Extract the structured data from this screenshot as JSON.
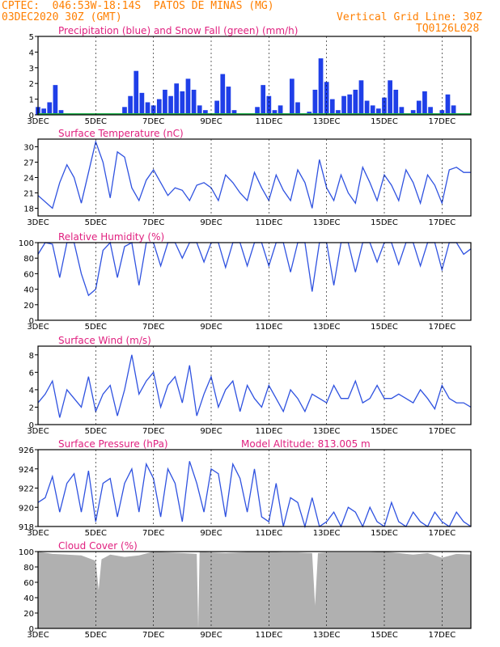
{
  "header": {
    "left_line1": "CPTEC:  046:53W-18:14S  PATOS DE MINAS (MG)",
    "left_line2": "03DEC2020 30Z (GMT)",
    "right_line1": "Vertical Grid Line: 30Z",
    "right_line2": "TQ0126L028"
  },
  "colors": {
    "header": "#ff7f00",
    "title": "#e0207f",
    "precip": "#1f3fe8",
    "snow": "#22b14c",
    "line": "#2f52e0",
    "cloud": "#b0b0b0",
    "grid": "#000000"
  },
  "x_axis": {
    "start_day": 3,
    "end_day": 18,
    "tick_labels": [
      "3DEC",
      "5DEC",
      "7DEC",
      "9DEC",
      "11DEC",
      "13DEC",
      "15DEC",
      "17DEC"
    ]
  },
  "chart_data": [
    {
      "type": "bar",
      "title": "Precipitation (blue) and Snow Fall (green) (mm/h)",
      "ylim": [
        0,
        5
      ],
      "yticks": [
        0,
        1,
        2,
        3,
        4,
        5
      ],
      "series": [
        {
          "name": "Precipitation",
          "x": [
            3.0,
            3.2,
            3.4,
            3.6,
            3.8,
            4.0,
            4.2,
            4.4,
            4.6,
            4.8,
            5.0,
            5.2,
            5.4,
            5.6,
            5.8,
            6.0,
            6.2,
            6.4,
            6.6,
            6.8,
            7.0,
            7.2,
            7.4,
            7.6,
            7.8,
            8.0,
            8.2,
            8.4,
            8.6,
            8.8,
            9.0,
            9.2,
            9.4,
            9.6,
            9.8,
            10.0,
            10.2,
            10.4,
            10.6,
            10.8,
            11.0,
            11.2,
            11.4,
            11.6,
            11.8,
            12.0,
            12.2,
            12.4,
            12.6,
            12.8,
            13.0,
            13.2,
            13.4,
            13.6,
            13.8,
            14.0,
            14.2,
            14.4,
            14.6,
            14.8,
            15.0,
            15.2,
            15.4,
            15.6,
            15.8,
            16.0,
            16.2,
            16.4,
            16.6,
            16.8,
            17.0,
            17.2,
            17.4,
            17.6,
            17.8
          ],
          "values": [
            0.5,
            0.4,
            0.8,
            1.9,
            0.3,
            0.1,
            0.0,
            0.0,
            0.0,
            0.0,
            0.0,
            0.0,
            0.0,
            0.0,
            0.0,
            0.5,
            1.2,
            2.8,
            1.4,
            0.8,
            0.6,
            1.0,
            1.6,
            1.2,
            2.0,
            1.5,
            2.3,
            1.6,
            0.6,
            0.3,
            0.1,
            0.9,
            2.6,
            1.8,
            0.3,
            0.0,
            0.1,
            0.0,
            0.5,
            1.9,
            1.2,
            0.3,
            0.6,
            0.1,
            2.3,
            0.8,
            0.1,
            0.2,
            1.6,
            3.6,
            2.1,
            1.0,
            0.3,
            1.2,
            1.3,
            1.6,
            2.2,
            0.9,
            0.6,
            0.4,
            1.1,
            2.2,
            1.6,
            0.5,
            0.1,
            0.3,
            0.9,
            1.5,
            0.5,
            0.0,
            0.3,
            1.3,
            0.6,
            0.1,
            0.0
          ]
        },
        {
          "name": "Snow Fall",
          "x": [
            3.0,
            18.0
          ],
          "values": [
            0.0,
            0.0
          ]
        }
      ]
    },
    {
      "type": "line",
      "title": "Surface Temperature (nC)",
      "ylim": [
        16.5,
        31.5
      ],
      "yticks": [
        18,
        21,
        24,
        27,
        30
      ],
      "series": [
        {
          "name": "Temperature",
          "x": [
            3.0,
            3.5,
            3.75,
            4.0,
            4.25,
            4.5,
            4.75,
            5.0,
            5.25,
            5.5,
            5.75,
            6.0,
            6.25,
            6.5,
            6.75,
            7.0,
            7.25,
            7.5,
            7.75,
            8.0,
            8.25,
            8.5,
            8.75,
            9.0,
            9.25,
            9.5,
            9.75,
            10.0,
            10.25,
            10.5,
            10.75,
            11.0,
            11.25,
            11.5,
            11.75,
            12.0,
            12.25,
            12.5,
            12.75,
            13.0,
            13.25,
            13.5,
            13.75,
            14.0,
            14.25,
            14.5,
            14.75,
            15.0,
            15.25,
            15.5,
            15.75,
            16.0,
            16.25,
            16.5,
            16.75,
            17.0,
            17.25,
            17.5,
            17.75,
            18.0
          ],
          "values": [
            20.5,
            18.0,
            23.0,
            26.5,
            24.0,
            19.0,
            25.0,
            31.0,
            27.0,
            20.0,
            29.0,
            28.0,
            22.0,
            19.5,
            23.5,
            25.5,
            23.0,
            20.5,
            22.0,
            21.5,
            19.5,
            22.5,
            23.0,
            22.0,
            19.5,
            24.5,
            23.0,
            21.0,
            19.5,
            25.0,
            22.0,
            19.5,
            24.5,
            21.5,
            19.5,
            25.5,
            23.0,
            18.0,
            27.5,
            22.0,
            19.5,
            24.5,
            21.0,
            19.0,
            26.0,
            23.0,
            19.5,
            24.5,
            22.5,
            19.5,
            25.5,
            23.0,
            19.0,
            24.5,
            22.5,
            19.0,
            25.5,
            26.0,
            25.0,
            25.0
          ]
        }
      ]
    },
    {
      "type": "line",
      "title": "Relative Humidity (%)",
      "ylim": [
        0,
        100
      ],
      "yticks": [
        0,
        20,
        40,
        60,
        80,
        100
      ],
      "series": [
        {
          "name": "Relative Humidity",
          "x": [
            3.0,
            3.25,
            3.5,
            3.75,
            4.0,
            4.25,
            4.5,
            4.75,
            5.0,
            5.25,
            5.5,
            5.75,
            6.0,
            6.25,
            6.5,
            6.75,
            7.0,
            7.25,
            7.5,
            7.75,
            8.0,
            8.25,
            8.5,
            8.75,
            9.0,
            9.25,
            9.5,
            9.75,
            10.0,
            10.25,
            10.5,
            10.75,
            11.0,
            11.25,
            11.5,
            11.75,
            12.0,
            12.25,
            12.5,
            12.75,
            13.0,
            13.25,
            13.5,
            13.75,
            14.0,
            14.25,
            14.5,
            14.75,
            15.0,
            15.25,
            15.5,
            15.75,
            16.0,
            16.25,
            16.5,
            16.75,
            17.0,
            17.25,
            17.5,
            17.75,
            18.0
          ],
          "values": [
            85,
            100,
            98,
            55,
            100,
            100,
            60,
            32,
            40,
            90,
            100,
            55,
            95,
            100,
            45,
            100,
            100,
            70,
            100,
            100,
            80,
            100,
            100,
            75,
            100,
            100,
            68,
            100,
            100,
            70,
            100,
            100,
            70,
            100,
            100,
            62,
            100,
            100,
            37,
            100,
            100,
            45,
            100,
            100,
            62,
            100,
            100,
            75,
            100,
            100,
            72,
            100,
            100,
            70,
            100,
            100,
            65,
            100,
            100,
            85,
            92
          ]
        }
      ]
    },
    {
      "type": "line",
      "title": "Surface Wind (m/s)",
      "ylim": [
        0,
        9
      ],
      "yticks": [
        0,
        2,
        4,
        6,
        8
      ],
      "series": [
        {
          "name": "Wind speed",
          "x": [
            3.0,
            3.25,
            3.5,
            3.75,
            4.0,
            4.25,
            4.5,
            4.75,
            5.0,
            5.25,
            5.5,
            5.75,
            6.0,
            6.25,
            6.5,
            6.75,
            7.0,
            7.25,
            7.5,
            7.75,
            8.0,
            8.25,
            8.5,
            8.75,
            9.0,
            9.25,
            9.5,
            9.75,
            10.0,
            10.25,
            10.5,
            10.75,
            11.0,
            11.25,
            11.5,
            11.75,
            12.0,
            12.25,
            12.5,
            12.75,
            13.0,
            13.25,
            13.5,
            13.75,
            14.0,
            14.25,
            14.5,
            14.75,
            15.0,
            15.25,
            15.5,
            15.75,
            16.0,
            16.25,
            16.5,
            16.75,
            17.0,
            17.25,
            17.5,
            17.75,
            18.0
          ],
          "values": [
            2.5,
            3.5,
            5.0,
            0.8,
            4.0,
            3.0,
            2.0,
            5.5,
            1.5,
            3.5,
            4.5,
            1.0,
            4.0,
            8.0,
            3.5,
            5.0,
            6.0,
            2.0,
            4.5,
            5.5,
            2.5,
            6.8,
            1.0,
            3.5,
            5.5,
            2.0,
            4.0,
            5.0,
            1.5,
            4.5,
            3.0,
            2.0,
            4.5,
            3.0,
            1.5,
            4.0,
            3.0,
            1.5,
            3.5,
            3.0,
            2.5,
            4.5,
            3.0,
            3.0,
            5.0,
            2.5,
            3.0,
            4.5,
            3.0,
            3.0,
            3.5,
            3.0,
            2.5,
            4.0,
            3.0,
            1.8,
            4.5,
            3.0,
            2.5,
            2.5,
            2.0
          ]
        }
      ]
    },
    {
      "type": "line",
      "title": "Surface Pressure (hPa)",
      "subtitle": "Model Altitude: 813.005 m",
      "ylim": [
        918,
        926
      ],
      "yticks": [
        918,
        920,
        922,
        924,
        926
      ],
      "series": [
        {
          "name": "Pressure",
          "x": [
            3.0,
            3.25,
            3.5,
            3.75,
            4.0,
            4.25,
            4.5,
            4.75,
            5.0,
            5.25,
            5.5,
            5.75,
            6.0,
            6.25,
            6.5,
            6.75,
            7.0,
            7.25,
            7.5,
            7.75,
            8.0,
            8.25,
            8.5,
            8.75,
            9.0,
            9.25,
            9.5,
            9.75,
            10.0,
            10.25,
            10.5,
            10.75,
            11.0,
            11.25,
            11.5,
            11.75,
            12.0,
            12.25,
            12.5,
            12.75,
            13.0,
            13.25,
            13.5,
            13.75,
            14.0,
            14.25,
            14.5,
            14.75,
            15.0,
            15.25,
            15.5,
            15.75,
            16.0,
            16.25,
            16.5,
            16.75,
            17.0,
            17.25,
            17.5,
            17.75,
            18.0
          ],
          "values": [
            920.5,
            921.0,
            923.2,
            919.5,
            922.5,
            923.5,
            919.5,
            923.8,
            918.5,
            922.5,
            923.0,
            919.0,
            922.5,
            924.0,
            919.5,
            924.5,
            923.0,
            919.0,
            924.0,
            922.5,
            918.5,
            924.8,
            922.5,
            919.5,
            924.0,
            923.5,
            919.0,
            924.5,
            923.0,
            919.5,
            924.0,
            919.0,
            918.5,
            922.5,
            918.0,
            921.0,
            920.5,
            918.0,
            921.0,
            918.0,
            918.5,
            919.5,
            918.0,
            920.0,
            919.5,
            918.0,
            920.0,
            918.5,
            918.0,
            920.5,
            918.5,
            918.0,
            919.5,
            918.5,
            918.0,
            919.5,
            918.5,
            918.0,
            919.5,
            918.5,
            918.0
          ]
        }
      ]
    },
    {
      "type": "area",
      "title": "Cloud Cover (%)",
      "ylim": [
        0,
        100
      ],
      "yticks": [
        0,
        20,
        40,
        60,
        80,
        100
      ],
      "series": [
        {
          "name": "Cloud Cover",
          "x": [
            3.0,
            3.5,
            4.0,
            4.5,
            5.0,
            5.1,
            5.2,
            5.5,
            6.0,
            6.5,
            7.0,
            7.5,
            8.0,
            8.5,
            8.55,
            8.6,
            9.0,
            9.5,
            10.0,
            10.5,
            11.0,
            11.5,
            12.0,
            12.5,
            12.6,
            12.7,
            13.0,
            13.5,
            14.0,
            14.5,
            15.0,
            15.5,
            16.0,
            16.5,
            17.0,
            17.5,
            18.0
          ],
          "values": [
            100,
            97,
            96,
            95,
            88,
            50,
            90,
            96,
            93,
            95,
            100,
            99,
            98,
            97,
            0,
            100,
            99,
            98,
            99,
            100,
            100,
            99,
            99,
            98,
            30,
            98,
            99,
            99,
            99,
            99,
            100,
            98,
            96,
            98,
            92,
            97,
            96
          ]
        }
      ]
    }
  ]
}
